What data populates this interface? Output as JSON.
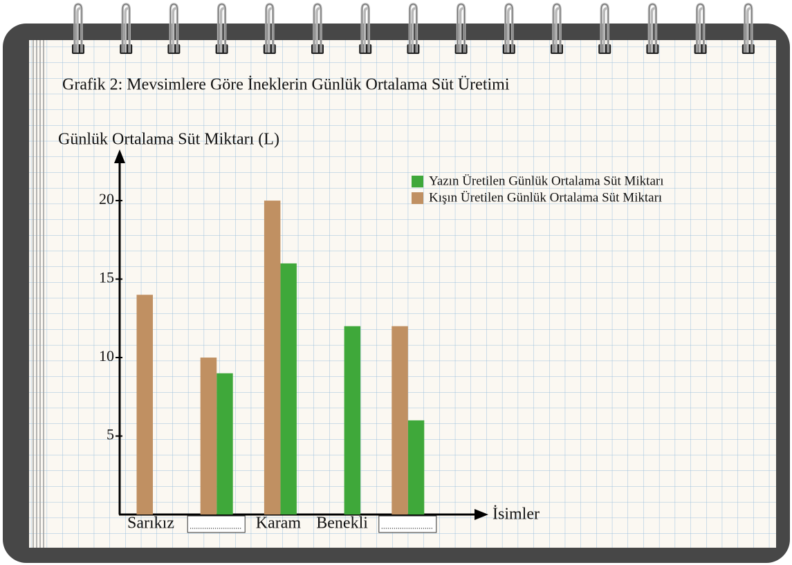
{
  "chart_data": {
    "type": "bar",
    "title": "Grafik 2: Mevsimlere Göre İneklerin Günlük Ortalama Süt Üretimi",
    "y_label": "Günlük Ortalama Süt Miktarı (L)",
    "x_label": "İsimler",
    "categories": [
      "Sarıkız",
      null,
      "Karam",
      "Benekli",
      null
    ],
    "series": [
      {
        "name": "Yazın Üretilen Günlük Ortalama Süt Miktarı",
        "color": "#3fa83a",
        "values": [
          null,
          9,
          16,
          12,
          6
        ]
      },
      {
        "name": "Kışın Üretilen Günlük Ortalama Süt Miktarı",
        "color": "#c09062",
        "values": [
          14,
          10,
          20,
          null,
          12
        ]
      }
    ],
    "ylim": [
      0,
      23
    ],
    "yticks": [
      5,
      10,
      15,
      20
    ],
    "legend": "upper right"
  }
}
